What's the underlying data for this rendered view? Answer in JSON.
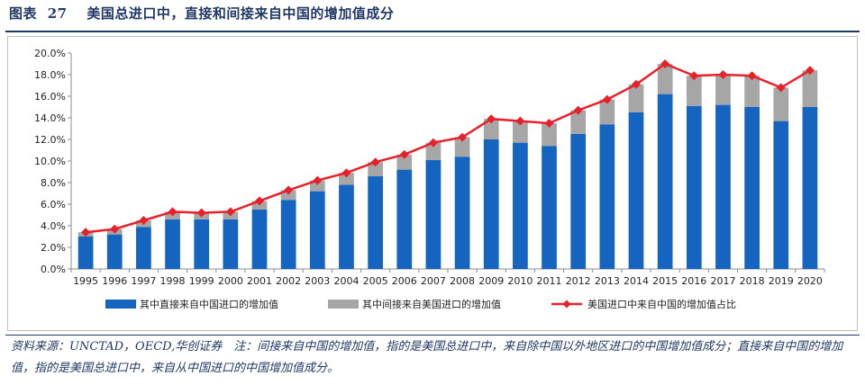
{
  "title": {
    "prefix": "图表",
    "number": "27",
    "text": "美国总进口中，直接和间接来自中国的增加值成分"
  },
  "chart_data": {
    "type": "bar",
    "categories": [
      "1995",
      "1996",
      "1997",
      "1998",
      "1999",
      "2000",
      "2001",
      "2002",
      "2003",
      "2004",
      "2005",
      "2006",
      "2007",
      "2008",
      "2009",
      "2010",
      "2011",
      "2012",
      "2013",
      "2014",
      "2015",
      "2016",
      "2017",
      "2018",
      "2019",
      "2020"
    ],
    "y_ticks": [
      "0.0%",
      "2.0%",
      "4.0%",
      "6.0%",
      "8.0%",
      "10.0%",
      "12.0%",
      "14.0%",
      "16.0%",
      "18.0%",
      "20.0%"
    ],
    "ylim": [
      0,
      20
    ],
    "grid": false,
    "legend_position": "bottom",
    "series": [
      {
        "name": "其中直接来自中国进口的增加值",
        "kind": "bar-stacked",
        "color": "#1565c0",
        "values": [
          3.0,
          3.2,
          3.9,
          4.6,
          4.6,
          4.6,
          5.5,
          6.4,
          7.2,
          7.8,
          8.6,
          9.2,
          10.1,
          10.4,
          12.0,
          11.7,
          11.4,
          12.5,
          13.4,
          14.5,
          16.2,
          15.1,
          15.2,
          15.0,
          13.7,
          15.0
        ]
      },
      {
        "name": "其中间接来自美国进口的增加值",
        "kind": "bar-stacked",
        "color": "#a6a6a6",
        "values": [
          0.4,
          0.5,
          0.6,
          0.7,
          0.6,
          0.7,
          0.8,
          0.9,
          1.0,
          1.1,
          1.3,
          1.4,
          1.6,
          1.8,
          1.9,
          2.0,
          2.1,
          2.2,
          2.3,
          2.6,
          2.8,
          2.8,
          2.8,
          2.9,
          3.1,
          3.4
        ]
      },
      {
        "name": "美国进口中来自中国的增加值占比",
        "kind": "line",
        "color": "#e8202a",
        "values": [
          3.4,
          3.7,
          4.5,
          5.3,
          5.2,
          5.3,
          6.3,
          7.3,
          8.2,
          8.9,
          9.9,
          10.6,
          11.7,
          12.2,
          13.9,
          13.7,
          13.5,
          14.7,
          15.7,
          17.1,
          19.0,
          17.9,
          18.0,
          17.9,
          16.8,
          18.4
        ]
      }
    ]
  },
  "source": {
    "text": "资料来源：UNCTAD，OECD,华创证券　注：间接来自中国的增加值，指的是美国总进口中，来自除中国以外地区进口的中国增加值成分；直接来自中国的增加值，指的是美国总进口中，来自从中国进口的中国增加值成分。"
  },
  "colors": {
    "title": "#1f3864",
    "bar_direct": "#1565c0",
    "bar_indirect": "#a6a6a6",
    "line": "#e8202a"
  }
}
